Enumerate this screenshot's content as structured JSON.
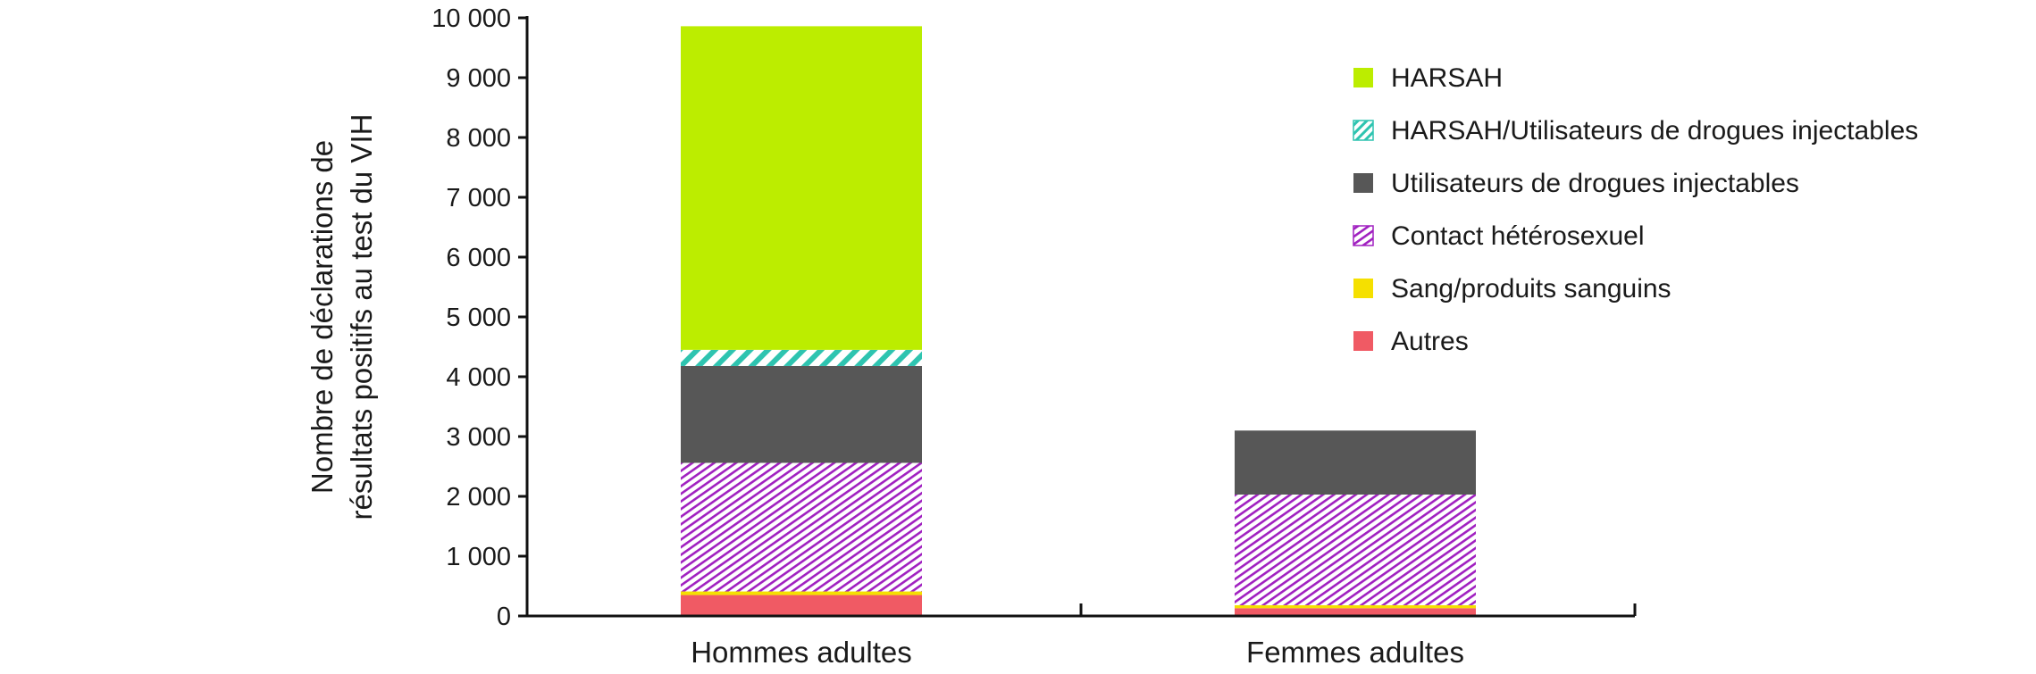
{
  "chart_data": {
    "type": "bar",
    "stacked": true,
    "title": "",
    "xlabel": "",
    "ylabel": [
      "Nombre de déclarations de",
      "résultats positifs au test du VIH"
    ],
    "ylim": [
      0,
      10000
    ],
    "yticks": [
      0,
      1000,
      2000,
      3000,
      4000,
      5000,
      6000,
      7000,
      8000,
      9000,
      10000
    ],
    "ytick_labels": [
      "0",
      "1 000",
      "2 000",
      "3 000",
      "4 000",
      "5 000",
      "6 000",
      "7 000",
      "8 000",
      "9 000",
      "10 000"
    ],
    "categories": [
      "Hommes adultes",
      "Femmes adultes"
    ],
    "series": [
      {
        "name": "Autres",
        "values": [
          350,
          130
        ],
        "color": "#f05a64",
        "pattern": "solid"
      },
      {
        "name": "Sang/produits sanguins",
        "values": [
          60,
          50
        ],
        "color": "#f5e000",
        "pattern": "solid"
      },
      {
        "name": "Contact hétérosexuel",
        "values": [
          2150,
          1850
        ],
        "color": "#a020c0",
        "pattern": "hatch"
      },
      {
        "name": "Utilisateurs de drogues injectables",
        "values": [
          1620,
          1070
        ],
        "color": "#575757",
        "pattern": "solid"
      },
      {
        "name": "HARSAH/Utilisateurs de drogues injectables",
        "values": [
          270,
          0
        ],
        "color": "#2ec4b0",
        "pattern": "stripes"
      },
      {
        "name": "HARSAH",
        "values": [
          5410,
          0
        ],
        "color": "#bced00",
        "pattern": "solid"
      }
    ],
    "legend": {
      "position": "top-right",
      "order": [
        "HARSAH",
        "HARSAH/Utilisateurs de drogues injectables",
        "Utilisateurs de drogues injectables",
        "Contact hétérosexuel",
        "Sang/produits sanguins",
        "Autres"
      ]
    },
    "grid": false
  }
}
